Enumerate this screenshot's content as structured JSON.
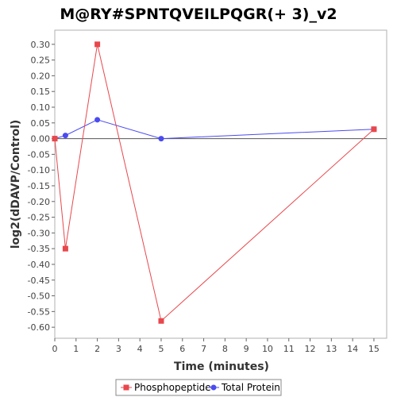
{
  "chart_data": {
    "type": "line",
    "title": "M@RY#SPNTQVEILPQGR(+ 3)_v2",
    "xlabel": "Time (minutes)",
    "ylabel": "log2(dDAVP/Control)",
    "xlim": [
      0,
      15.6
    ],
    "ylim": [
      -0.635,
      0.345
    ],
    "xticks": [
      0,
      1,
      2,
      3,
      4,
      5,
      6,
      7,
      8,
      9,
      10,
      11,
      12,
      13,
      14,
      15
    ],
    "yticks": [
      0.3,
      0.25,
      0.2,
      0.15,
      0.1,
      0.05,
      0.0,
      -0.05,
      -0.1,
      -0.15,
      -0.2,
      -0.25,
      -0.3,
      -0.35,
      -0.4,
      -0.45,
      -0.5,
      -0.55,
      -0.6
    ],
    "grid": false,
    "legend_position": "bottom",
    "series": [
      {
        "name": "Phosphopeptide",
        "color": "#e8474c",
        "marker": "square",
        "x": [
          0,
          0.5,
          2,
          5,
          15
        ],
        "y": [
          0.0,
          -0.35,
          0.3,
          -0.58,
          0.03
        ]
      },
      {
        "name": "Total Protein",
        "color": "#4b4bf0",
        "marker": "circle",
        "x": [
          0,
          0.5,
          2,
          5,
          15
        ],
        "y": [
          0.0,
          0.01,
          0.06,
          0.0,
          0.03
        ]
      }
    ]
  }
}
